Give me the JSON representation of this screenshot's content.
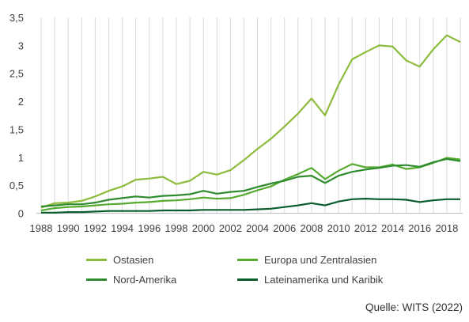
{
  "chart_data": {
    "type": "line",
    "title": "",
    "xlabel": "",
    "ylabel": "",
    "ylim": [
      0,
      3.5
    ],
    "yticks": [
      "0",
      "0,5",
      "1",
      "1,5",
      "2",
      "2,5",
      "3",
      "3,5"
    ],
    "xticks": [
      "1988",
      "1990",
      "1992",
      "1994",
      "1996",
      "1998",
      "2000",
      "2002",
      "2004",
      "2006",
      "2008",
      "2010",
      "2012",
      "2014",
      "2016",
      "2018"
    ],
    "x": [
      1988,
      1989,
      1990,
      1991,
      1992,
      1993,
      1994,
      1995,
      1996,
      1997,
      1998,
      1999,
      2000,
      2001,
      2002,
      2003,
      2004,
      2005,
      2006,
      2007,
      2008,
      2009,
      2010,
      2011,
      2012,
      2013,
      2014,
      2015,
      2016,
      2017,
      2018,
      2019
    ],
    "grid": "vertical lines at each year",
    "legend_placement": "bottom",
    "series": [
      {
        "name": "Ostasien",
        "color": "#8dbb3c",
        "values": [
          0.1,
          0.18,
          0.19,
          0.22,
          0.3,
          0.4,
          0.48,
          0.6,
          0.62,
          0.65,
          0.52,
          0.58,
          0.74,
          0.69,
          0.77,
          0.95,
          1.15,
          1.33,
          1.55,
          1.78,
          2.05,
          1.75,
          2.3,
          2.75,
          2.88,
          3.0,
          2.98,
          2.73,
          2.62,
          2.93,
          3.18,
          3.06
        ]
      },
      {
        "name": "Europa und Zentralasien",
        "color": "#56ab2f",
        "values": [
          0.05,
          0.09,
          0.11,
          0.12,
          0.14,
          0.16,
          0.17,
          0.19,
          0.2,
          0.22,
          0.23,
          0.25,
          0.28,
          0.26,
          0.27,
          0.33,
          0.41,
          0.48,
          0.6,
          0.7,
          0.81,
          0.61,
          0.76,
          0.88,
          0.82,
          0.82,
          0.87,
          0.79,
          0.82,
          0.9,
          0.99,
          0.96
        ]
      },
      {
        "name": "Nord-Amerika",
        "color": "#2e8b2e",
        "values": [
          0.12,
          0.14,
          0.16,
          0.16,
          0.19,
          0.24,
          0.27,
          0.3,
          0.28,
          0.31,
          0.32,
          0.34,
          0.4,
          0.35,
          0.38,
          0.4,
          0.47,
          0.53,
          0.58,
          0.65,
          0.67,
          0.54,
          0.67,
          0.74,
          0.78,
          0.81,
          0.85,
          0.86,
          0.83,
          0.91,
          0.97,
          0.93
        ]
      },
      {
        "name": "Lateinamerika und Karibik",
        "color": "#0b5e2c",
        "values": [
          0.01,
          0.01,
          0.02,
          0.02,
          0.03,
          0.04,
          0.04,
          0.04,
          0.04,
          0.05,
          0.05,
          0.05,
          0.06,
          0.06,
          0.06,
          0.06,
          0.07,
          0.08,
          0.11,
          0.14,
          0.18,
          0.14,
          0.21,
          0.25,
          0.26,
          0.25,
          0.25,
          0.24,
          0.2,
          0.23,
          0.25,
          0.25
        ]
      }
    ]
  },
  "source": "Quelle: WITS (2022)",
  "legend": [
    {
      "label": "Ostasien",
      "color": "#8dbb3c"
    },
    {
      "label": "Europa und Zentralasien",
      "color": "#56ab2f"
    },
    {
      "label": "Nord-Amerika",
      "color": "#2e8b2e"
    },
    {
      "label": "Lateinamerika und Karibik",
      "color": "#0b5e2c"
    }
  ]
}
